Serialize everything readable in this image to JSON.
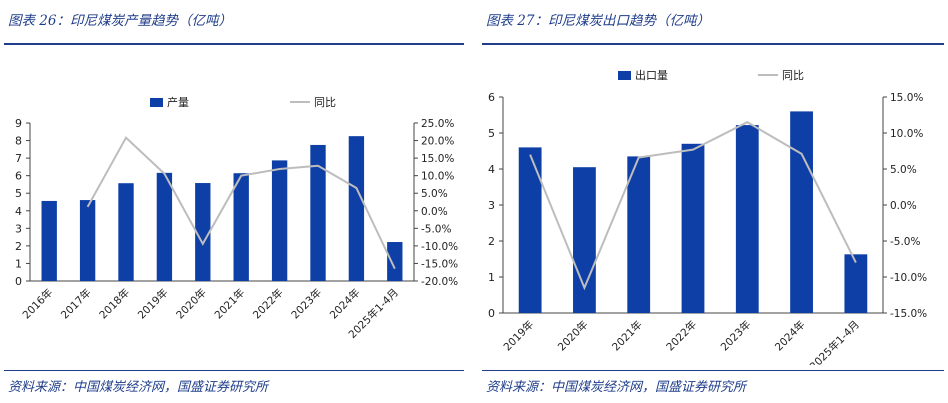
{
  "panels": [
    {
      "title": "图表 26：印尼煤炭产量趋势（亿吨）",
      "source": "资料来源：中国煤炭经济网，国盛证券研究所"
    },
    {
      "title": "图表 27：印尼煤炭出口趋势（亿吨）",
      "source": "资料来源：中国煤炭经济网，国盛证券研究所"
    }
  ],
  "chart_data": [
    {
      "type": "bar",
      "title": "",
      "categories": [
        "2016年",
        "2017年",
        "2018年",
        "2019年",
        "2020年",
        "2021年",
        "2022年",
        "2023年",
        "2024年",
        "2025年1-4月"
      ],
      "series": [
        {
          "name": "产量",
          "kind": "bar",
          "axis": "left",
          "color": "#0d3fa6",
          "values": [
            4.56,
            4.61,
            5.57,
            6.16,
            5.58,
            6.14,
            6.87,
            7.75,
            8.25,
            2.22
          ]
        },
        {
          "name": "同比",
          "kind": "line",
          "axis": "right",
          "color": "#bdbdbd",
          "values": [
            null,
            1.1,
            20.8,
            10.6,
            -9.4,
            10.0,
            11.9,
            12.8,
            6.5,
            -16.5
          ]
        }
      ],
      "ylim": [
        0,
        9
      ],
      "yticks": [
        "0",
        "1",
        "2",
        "3",
        "4",
        "5",
        "6",
        "7",
        "8",
        "9"
      ],
      "y2lim": [
        -20,
        25
      ],
      "y2ticks": [
        "-20.0%",
        "-15.0%",
        "-10.0%",
        "-5.0%",
        "0.0%",
        "5.0%",
        "10.0%",
        "15.0%",
        "20.0%",
        "25.0%"
      ],
      "legend_position": "top"
    },
    {
      "type": "bar",
      "title": "",
      "categories": [
        "2019年",
        "2020年",
        "2021年",
        "2022年",
        "2023年",
        "2024年",
        "2025年1-4月"
      ],
      "series": [
        {
          "name": "出口量",
          "kind": "bar",
          "axis": "left",
          "color": "#0d3fa6",
          "values": [
            4.6,
            4.05,
            4.35,
            4.7,
            5.22,
            5.6,
            1.63
          ]
        },
        {
          "name": "同比",
          "kind": "line",
          "axis": "right",
          "color": "#bdbdbd",
          "values": [
            7.0,
            -11.5,
            6.6,
            7.7,
            11.5,
            7.1,
            -8.0
          ]
        }
      ],
      "ylim": [
        0,
        6
      ],
      "yticks": [
        "0",
        "1",
        "2",
        "3",
        "4",
        "5",
        "6"
      ],
      "y2lim": [
        -15,
        15
      ],
      "y2ticks": [
        "-15.0%",
        "-10.0%",
        "-5.0%",
        "0.0%",
        "5.0%",
        "10.0%",
        "15.0%"
      ],
      "legend_position": "top"
    }
  ]
}
